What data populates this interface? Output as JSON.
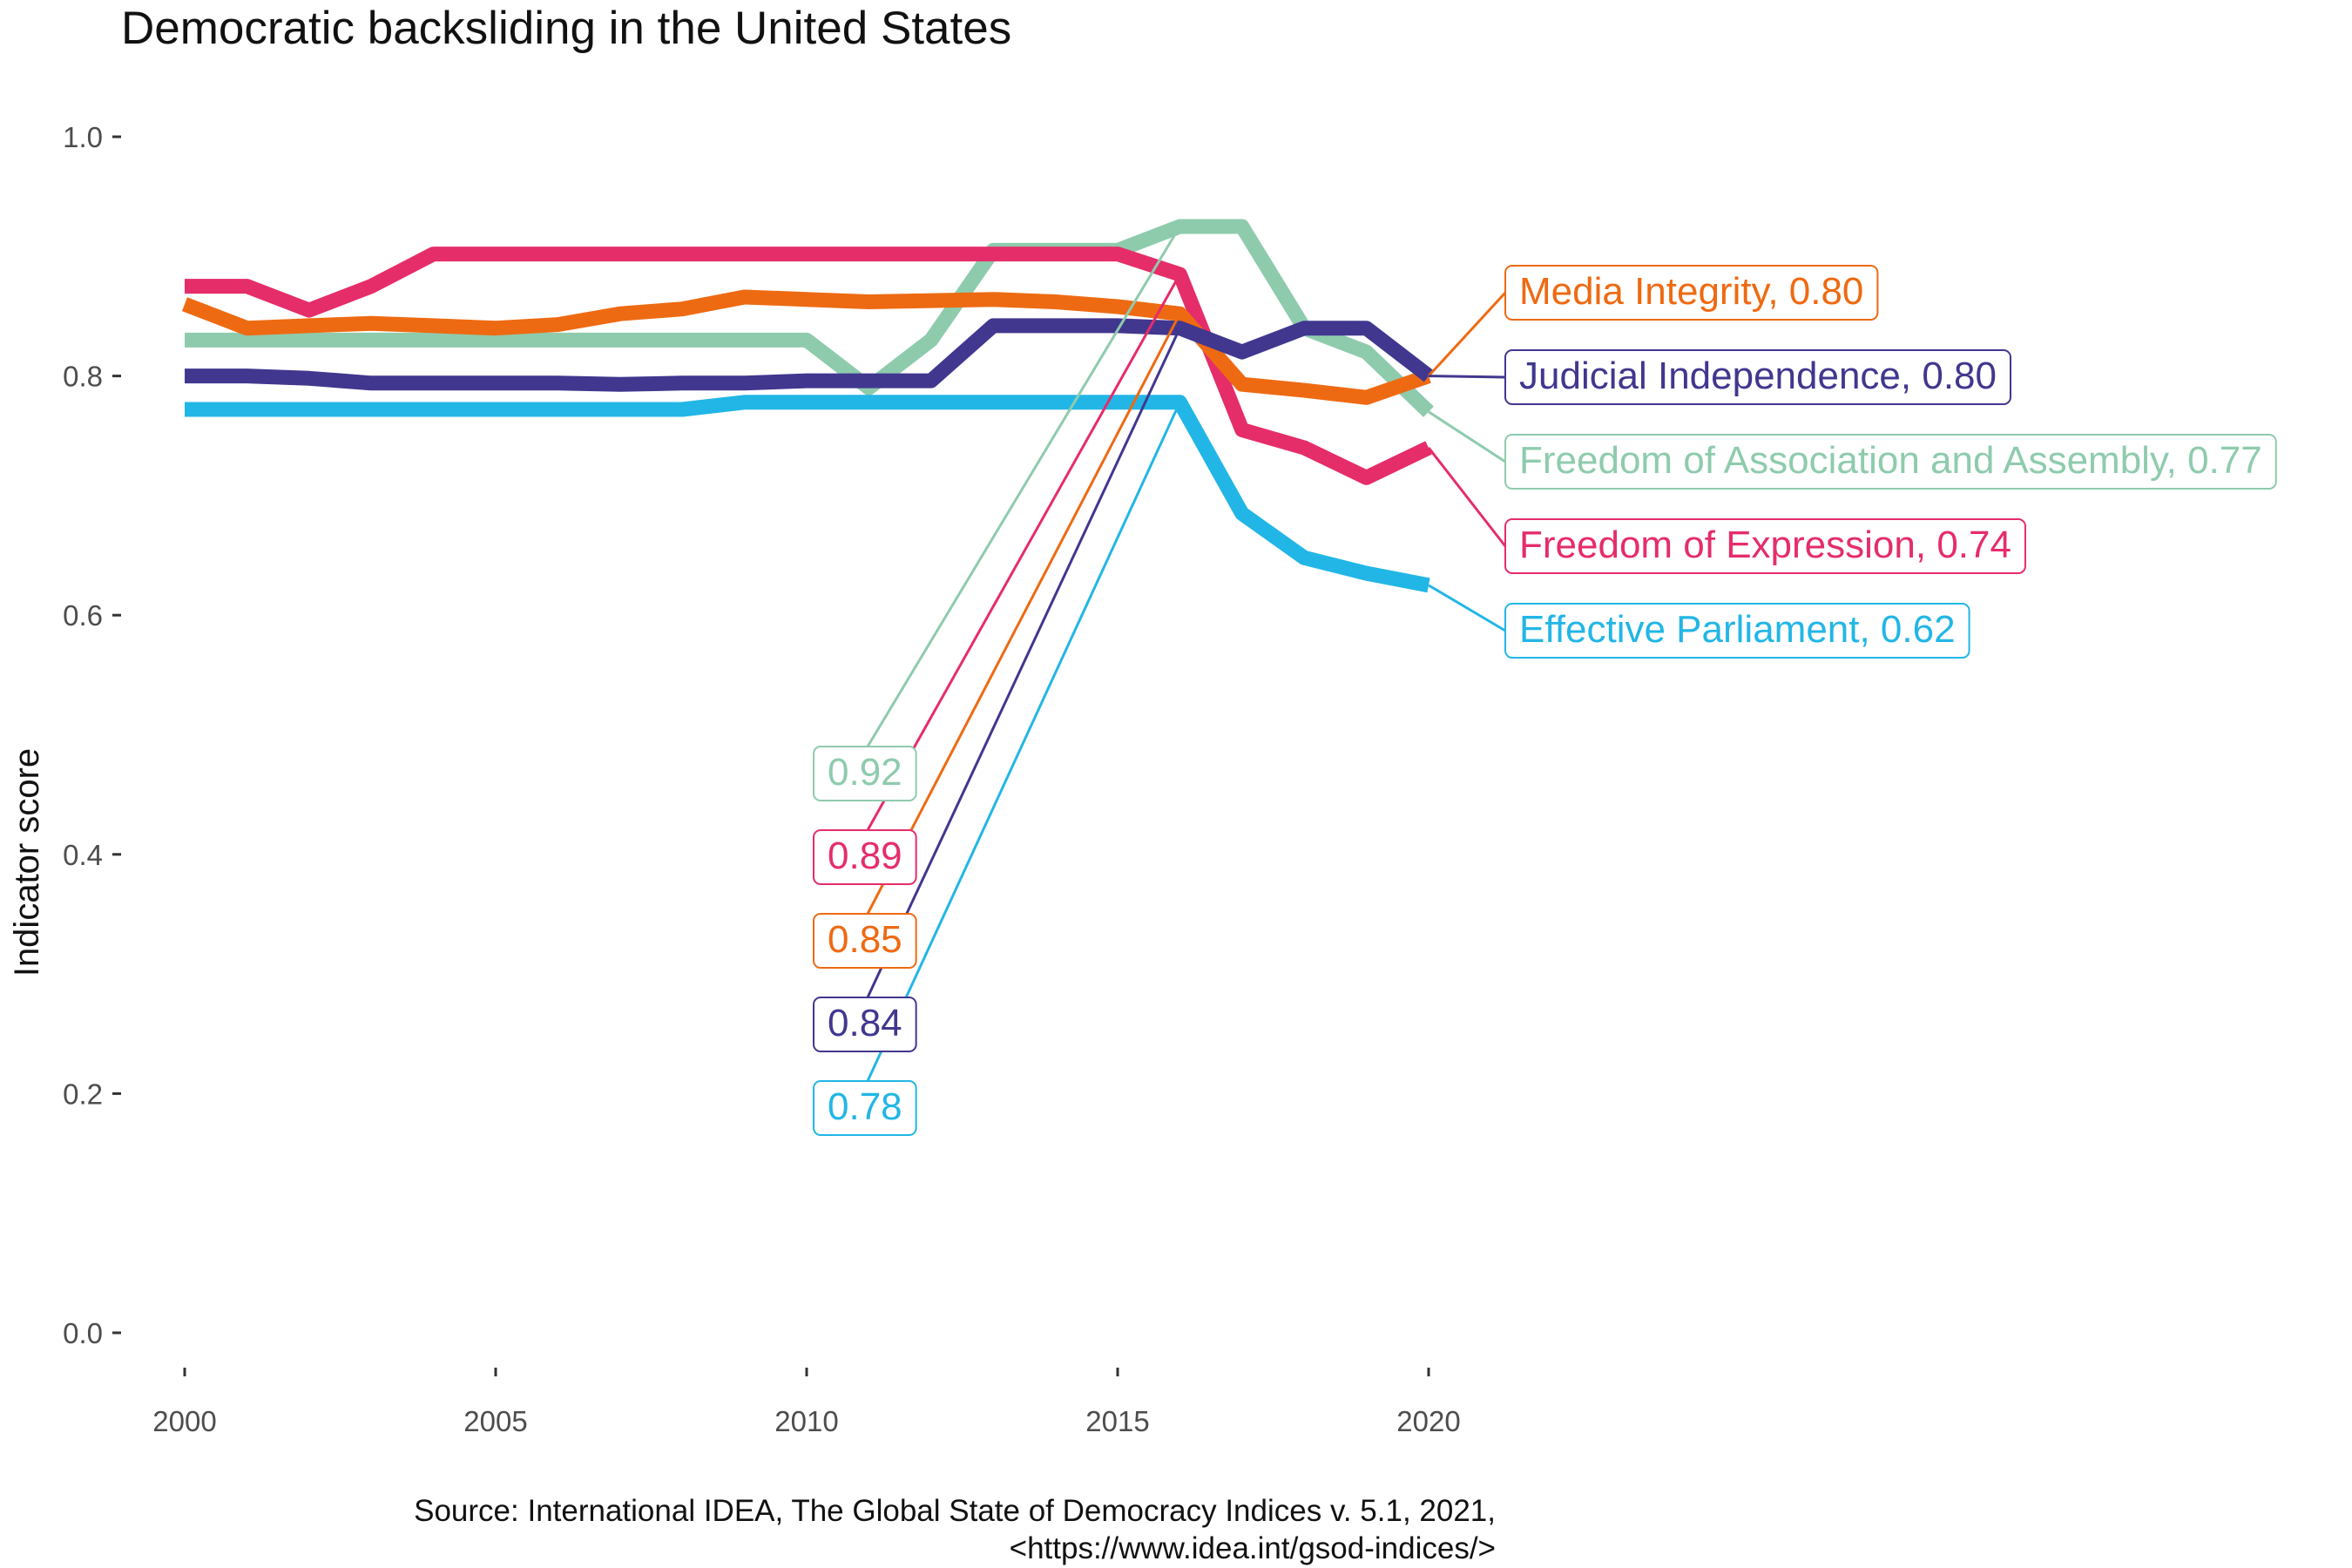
{
  "chart_data": {
    "type": "line",
    "title": "Democratic backsliding in the United States",
    "xlabel": "",
    "ylabel": "Indicator score",
    "xlim": [
      2000,
      2020
    ],
    "ylim": [
      0,
      1
    ],
    "x_ticks": [
      2000,
      2005,
      2010,
      2015,
      2020
    ],
    "y_ticks": [
      0.0,
      0.2,
      0.4,
      0.6,
      0.8,
      1.0
    ],
    "y_tick_labels": [
      "0.0",
      "0.2",
      "0.4",
      "0.6",
      "0.8",
      "1.0"
    ],
    "grid": false,
    "legend": "none",
    "x": [
      2000,
      2001,
      2002,
      2003,
      2004,
      2005,
      2006,
      2007,
      2008,
      2009,
      2010,
      2011,
      2012,
      2013,
      2014,
      2015,
      2016,
      2017,
      2018,
      2019,
      2020
    ],
    "series": [
      {
        "name": "Freedom of Association and Assembly",
        "color": "#8ecbad",
        "values": [
          0.83,
          0.83,
          0.83,
          0.83,
          0.83,
          0.83,
          0.83,
          0.83,
          0.83,
          0.83,
          0.83,
          0.79,
          0.83,
          0.905,
          0.905,
          0.905,
          0.925,
          0.925,
          0.84,
          0.82,
          0.77
        ],
        "end_label": "Freedom of Association and Assembly, 0.77",
        "peak_label": "0.92"
      },
      {
        "name": "Freedom of Expression",
        "color": "#e52d69",
        "values": [
          0.875,
          0.875,
          0.855,
          0.875,
          0.902,
          0.902,
          0.902,
          0.902,
          0.902,
          0.902,
          0.902,
          0.902,
          0.902,
          0.902,
          0.902,
          0.902,
          0.885,
          0.755,
          0.74,
          0.715,
          0.74
        ],
        "end_label": "Freedom of Expression, 0.74",
        "peak_label": "0.89"
      },
      {
        "name": "Media Integrity",
        "color": "#ee6a12",
        "values": [
          0.86,
          0.84,
          0.842,
          0.844,
          0.842,
          0.84,
          0.843,
          0.852,
          0.856,
          0.866,
          0.864,
          0.862,
          0.863,
          0.864,
          0.862,
          0.858,
          0.852,
          0.793,
          0.788,
          0.782,
          0.8
        ],
        "end_label": "Media Integrity, 0.80",
        "peak_label": "0.85"
      },
      {
        "name": "Judicial Independence",
        "color": "#41378f",
        "values": [
          0.8,
          0.8,
          0.798,
          0.794,
          0.794,
          0.794,
          0.794,
          0.793,
          0.794,
          0.794,
          0.796,
          0.796,
          0.796,
          0.842,
          0.842,
          0.842,
          0.84,
          0.82,
          0.84,
          0.84,
          0.8
        ],
        "end_label": "Judicial Independence, 0.80",
        "peak_label": "0.84"
      },
      {
        "name": "Effective Parliament",
        "color": "#22b6e6",
        "values": [
          0.772,
          0.772,
          0.772,
          0.772,
          0.772,
          0.772,
          0.772,
          0.772,
          0.772,
          0.778,
          0.778,
          0.778,
          0.778,
          0.778,
          0.778,
          0.778,
          0.778,
          0.685,
          0.648,
          0.635,
          0.625
        ],
        "end_label": "Effective Parliament, 0.62",
        "peak_label": "0.78"
      }
    ],
    "end_label_order": [
      "Media Integrity",
      "Judicial Independence",
      "Freedom of Association and Assembly",
      "Freedom of Expression",
      "Effective Parliament"
    ],
    "peak_label_order": [
      "Freedom of Association and Assembly",
      "Freedom of Expression",
      "Media Integrity",
      "Judicial Independence",
      "Effective Parliament"
    ],
    "peak_year": 2016
  },
  "caption": {
    "line1": "Source: International IDEA, The Global State of Democracy Indices v. 5.1, 2021,",
    "line2": "<https://www.idea.int/gsod-indices/>"
  }
}
